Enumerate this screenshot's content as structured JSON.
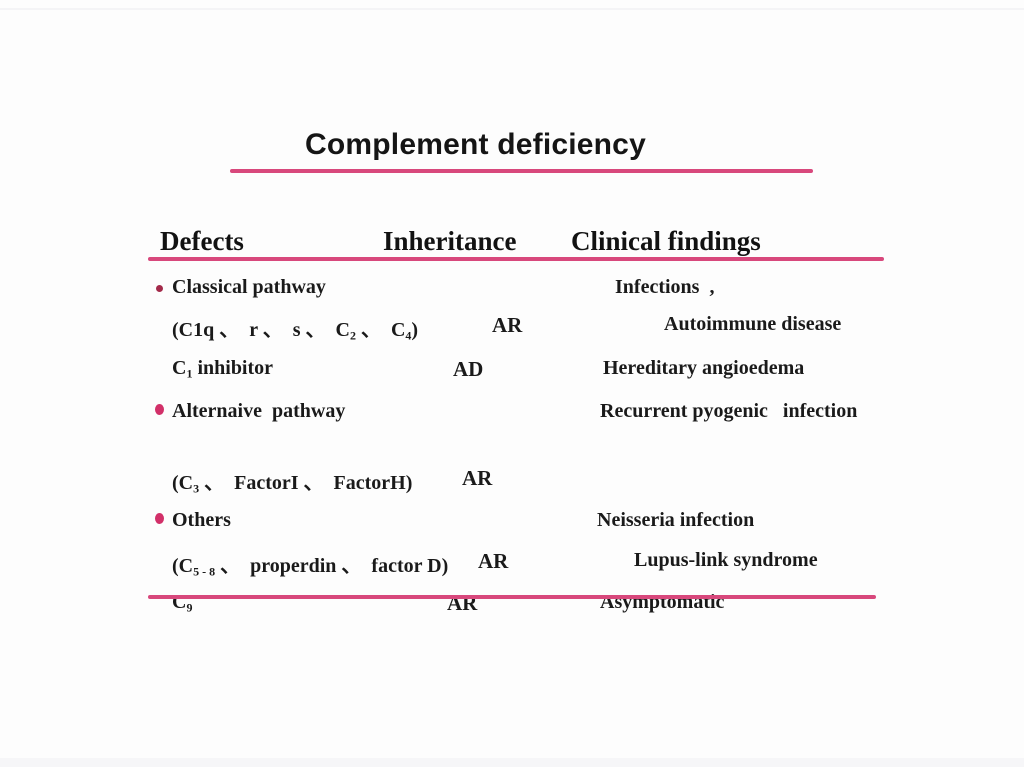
{
  "slide": {
    "title": "Complement deficiency",
    "accent_color": "#d8487c",
    "bullet_color_primary": "#a32a4a",
    "bullet_color_secondary": "#d23069",
    "text_color": "#1a1a1a"
  },
  "table": {
    "headers": [
      "Defects",
      "Inheritance",
      "Clinical findings"
    ],
    "rows": [
      {
        "defect_html": "Classical pathway",
        "inheritance": "",
        "clinical": "Infections  ,"
      },
      {
        "defect_html": "(C1q 、  r 、  s 、  C<sub>2</sub> 、  C<sub>4</sub>)",
        "inheritance": "AR",
        "clinical": "Autoimmune disease"
      },
      {
        "defect_html": "C<sub>1</sub> inhibitor",
        "inheritance": "AD",
        "clinical": "Hereditary angioedema"
      },
      {
        "defect_html": "Alternaive  pathway",
        "inheritance": "",
        "clinical": "Recurrent pyogenic   infection"
      },
      {
        "defect_html": "(C<sub>3</sub> 、  FactorI 、  FactorH)",
        "inheritance": "AR",
        "clinical": ""
      },
      {
        "defect_html": "Others",
        "inheritance": "",
        "clinical": "Neisseria infection"
      },
      {
        "defect_html": "(C<sub>5 - 8</sub> 、  properdin 、  factor D)",
        "inheritance": "AR",
        "clinical": "Lupus-link syndrome"
      },
      {
        "defect_html": "C<sub>9</sub>",
        "inheritance": "AR",
        "clinical": "Asymptomatic"
      }
    ]
  }
}
